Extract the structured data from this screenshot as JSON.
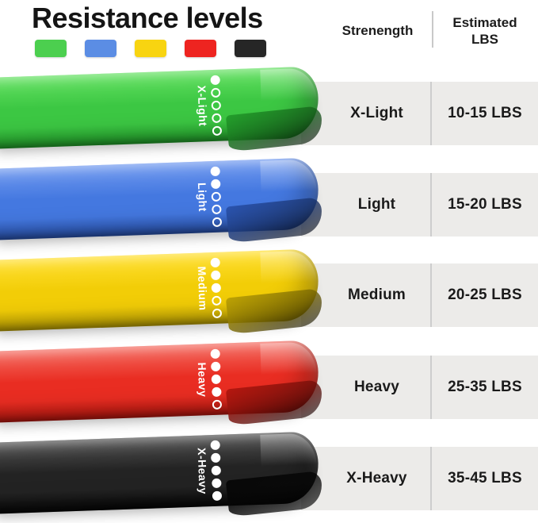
{
  "title": "Resistance levels",
  "swatches": [
    {
      "name": "green",
      "color": "#4ccf4f"
    },
    {
      "name": "blue",
      "color": "#5b8de4"
    },
    {
      "name": "yellow",
      "color": "#f8d411"
    },
    {
      "name": "red",
      "color": "#ee2420"
    },
    {
      "name": "black",
      "color": "#262626"
    }
  ],
  "table": {
    "col_strength": "Strenength",
    "col_lbs": "Estimated LBS",
    "rows": [
      {
        "strength": "X-Light",
        "lbs": "10-15 LBS"
      },
      {
        "strength": "Light",
        "lbs": "15-20 LBS"
      },
      {
        "strength": "Medium",
        "lbs": "20-25 LBS"
      },
      {
        "strength": "Heavy",
        "lbs": "25-35 LBS"
      },
      {
        "strength": "X-Heavy",
        "lbs": "35-45 LBS"
      }
    ]
  },
  "bands": [
    {
      "label": "X-Light",
      "filled_dots": 1,
      "total_dots": 5,
      "color": {
        "light": "#62e060",
        "base": "#3cc743",
        "dark": "#239e2b"
      }
    },
    {
      "label": "Light",
      "filled_dots": 2,
      "total_dots": 5,
      "color": {
        "light": "#6e98ef",
        "base": "#4478e0",
        "dark": "#2a53ae"
      }
    },
    {
      "label": "Medium",
      "filled_dots": 3,
      "total_dots": 5,
      "color": {
        "light": "#ffdf2e",
        "base": "#f2cd07",
        "dark": "#bda204"
      }
    },
    {
      "label": "Heavy",
      "filled_dots": 4,
      "total_dots": 5,
      "color": {
        "light": "#f4695e",
        "base": "#e92d22",
        "dark": "#b5170f"
      }
    },
    {
      "label": "X-Heavy",
      "filled_dots": 5,
      "total_dots": 5,
      "color": {
        "light": "#505050",
        "base": "#232323",
        "dark": "#070707"
      }
    }
  ]
}
